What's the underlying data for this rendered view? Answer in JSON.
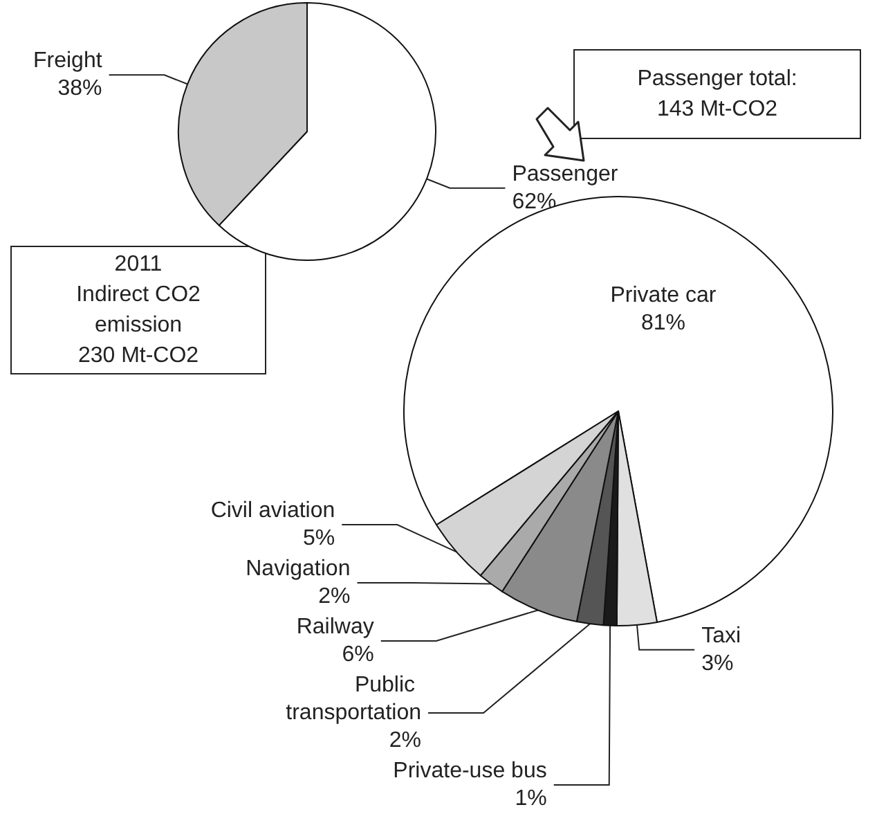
{
  "chart_data": [
    {
      "type": "pie",
      "categories": [
        "Passenger",
        "Freight"
      ],
      "values": [
        62,
        38
      ],
      "value_labels": [
        "62%",
        "38%"
      ],
      "colors": [
        "#ffffff",
        "#c8c8c8"
      ],
      "annotations": [
        "2011\nIndirect CO2\nemission\n230 Mt-CO2"
      ]
    },
    {
      "type": "pie",
      "categories": [
        "Private car",
        "Taxi",
        "Private-use bus",
        "Public transportation",
        "Railway",
        "Navigation",
        "Civil aviation"
      ],
      "values": [
        81,
        3,
        1,
        2,
        6,
        2,
        5
      ],
      "value_labels": [
        "81%",
        "3%",
        "1%",
        "2%",
        "6%",
        "2%",
        "5%"
      ],
      "colors": [
        "#ffffff",
        "#e0e0e0",
        "#1a1a1a",
        "#555555",
        "#8a8a8a",
        "#aaaaaa",
        "#d4d4d4"
      ],
      "annotations": [
        "Passenger total:\n143 Mt-CO2"
      ]
    }
  ]
}
